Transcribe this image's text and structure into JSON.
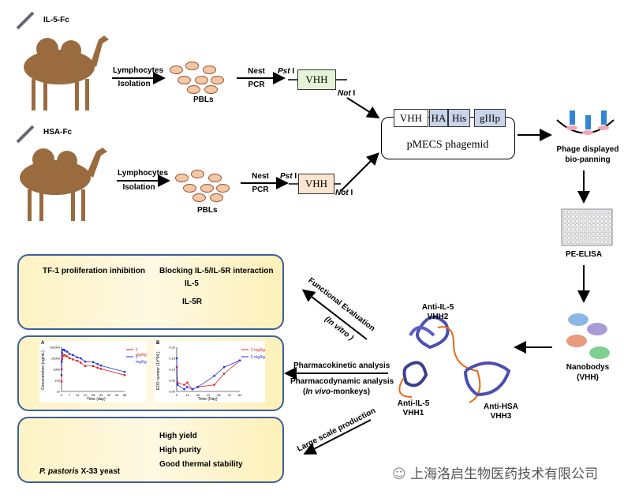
{
  "top_row": {
    "antigen": "IL-5-Fc",
    "step1_top": "Lymphocytes",
    "step1_bottom": "Isolation",
    "cells": "PBLs",
    "step2_top": "Nest",
    "step2_bottom": "PCR",
    "site1": "Pst",
    "site1_suffix": "I",
    "gene": "VHH",
    "site2": "Not",
    "site2_suffix": "I",
    "gene_color": "#e6f3d8"
  },
  "bottom_row": {
    "antigen": "HSA-Fc",
    "step1_top": "Lymphocytes",
    "step1_bottom": "Isolation",
    "cells": "PBLs",
    "step2_top": "Nest",
    "step2_bottom": "PCR",
    "site1": "Pst",
    "site1_suffix": "I",
    "gene": "VHH",
    "site2": "Not",
    "site2_suffix": "I",
    "gene_color": "#fbe4d0"
  },
  "phagemid": {
    "segments": [
      "VHH",
      "HA",
      "His",
      "gIIIp"
    ],
    "name": "pMECS phagemid"
  },
  "panning": {
    "label_line1": "Phage displayed",
    "label_line2": "bio-panning"
  },
  "elisa": {
    "label": "PE-ELISA"
  },
  "nanobodies": {
    "label_line1": "Nanobodys",
    "label_line2": "(VHH)"
  },
  "structure": {
    "vhh2_line1": "Anti-IL-5",
    "vhh2_line2": "VHH2",
    "vhh1_line1": "Anti-IL-5",
    "vhh1_line2": "VHH1",
    "vhh3_line1": "Anti-HSA",
    "vhh3_line2": "VHH3"
  },
  "arrows": {
    "functional_line1": "Functional Evaluation",
    "functional_line2": "(In vitro )",
    "pk": "Pharmacokinetic analysis",
    "pd": "Pharmacodynamic analysis",
    "pd_sub_italic": "In vivo",
    "pd_sub_rest": "-monkeys)",
    "pd_sub_open": "(",
    "large_scale": "Large scale production"
  },
  "panel1": {
    "title_left": "TF-1 proliferation inhibition",
    "title_right": "Blocking IL-5/IL-5R interaction",
    "ligand": "IL-5",
    "receptor": "IL-5R"
  },
  "panel2": {
    "plotA": {
      "panel": "A",
      "ylabel": "Concentration (ng/mL)",
      "xlabel": "Time (day)",
      "yticks": [
        "100000",
        "10000",
        "1000",
        "100",
        "10"
      ],
      "xticks": [
        "0",
        "7",
        "14",
        "21",
        "28",
        "35",
        "42",
        "49",
        "56"
      ],
      "series": [
        {
          "name": "2 mg/kg",
          "color": "#e02020",
          "x": [
            0,
            0.1,
            0.5,
            1,
            2,
            3,
            5,
            7,
            10,
            14,
            17,
            21,
            28,
            32,
            35,
            56
          ],
          "y": [
            80,
            1000,
            8000,
            15000,
            20000,
            18000,
            15000,
            10000,
            8000,
            6000,
            4000,
            2000,
            2000,
            1400,
            1100,
            300
          ]
        },
        {
          "name": "5 mg/kg",
          "color": "#2030e0",
          "x": [
            0,
            0.1,
            0.5,
            1,
            2,
            3,
            5,
            7,
            10,
            14,
            17,
            21,
            28,
            32,
            35,
            56
          ],
          "y": [
            300,
            5000,
            30000,
            60000,
            60000,
            50000,
            40000,
            25000,
            20000,
            12000,
            10000,
            5000,
            4500,
            3000,
            2200,
            600
          ]
        }
      ]
    },
    "plotB": {
      "panel": "B",
      "ylabel": "EOS number (10^9/L)",
      "xlabel": "Time (Day)",
      "yticks": [
        "0.20",
        "0.15",
        "0.10",
        "0.05",
        "0.00"
      ],
      "xticks": [
        "0",
        "14",
        "28",
        "42",
        "56",
        "70",
        "84"
      ],
      "series": [
        {
          "name": "2 mg/kg",
          "color": "#e02020",
          "x": [
            0,
            1,
            10,
            14,
            21,
            28,
            50,
            63,
            84
          ],
          "y": [
            0.11,
            0.04,
            0.03,
            0.04,
            0.01,
            0.02,
            0.03,
            0.08,
            0.14
          ]
        },
        {
          "name": "5 mg/kg",
          "color": "#2030e0",
          "x": [
            0,
            1,
            10,
            14,
            21,
            28,
            50,
            63,
            84
          ],
          "y": [
            0.15,
            0.03,
            0.01,
            0.02,
            0.01,
            0.02,
            0.07,
            0.11,
            0.14
          ]
        }
      ]
    }
  },
  "panel3": {
    "bullets": [
      "High yield",
      "High purity",
      "Good thermal stability"
    ],
    "organism_italic": "P. pastoris",
    "organism_rest": " X-33 yeast"
  },
  "watermark": "上海洛启生物医药技术有限公司"
}
